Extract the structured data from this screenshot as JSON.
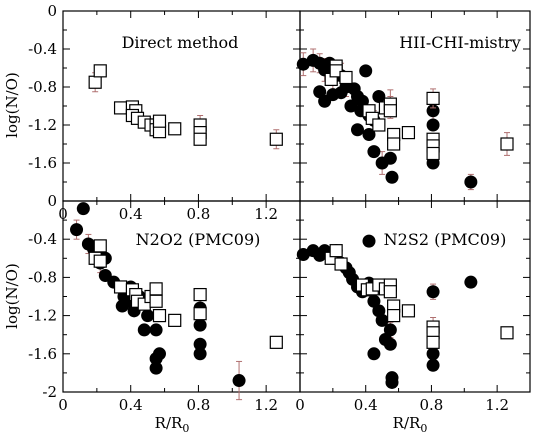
{
  "figure": {
    "ylabel": "log(N/O)",
    "xlabel_main": "R/R",
    "xlabel_sub": "0"
  },
  "chart_data": [
    {
      "type": "scatter",
      "title": "Direct method",
      "xlim": [
        0,
        1.4
      ],
      "ylim": [
        -2,
        0
      ],
      "xticks": [
        0,
        0.4,
        0.8,
        1.2
      ],
      "xtick_labels": [
        "0",
        "0.4",
        "0.8",
        "1.2"
      ],
      "yticks": [
        0,
        -0.4,
        -0.8,
        -1.2,
        -1.6
      ],
      "ytick_labels": [
        "0",
        "-0.4",
        "-0.8",
        "-1.2",
        "-1.6"
      ],
      "series": [
        {
          "marker": "open-square",
          "points": [
            [
              0.19,
              -0.75
            ],
            [
              0.22,
              -0.63
            ],
            [
              0.34,
              -1.02
            ],
            [
              0.41,
              -1.01
            ],
            [
              0.43,
              -1.05
            ],
            [
              0.41,
              -1.1
            ],
            [
              0.44,
              -1.13
            ],
            [
              0.48,
              -1.17
            ],
            [
              0.52,
              -1.2
            ],
            [
              0.55,
              -1.2
            ],
            [
              0.55,
              -1.25
            ],
            [
              0.57,
              -1.27
            ],
            [
              0.57,
              -1.16
            ],
            [
              0.66,
              -1.24
            ],
            [
              0.81,
              -1.2
            ],
            [
              0.81,
              -1.28
            ],
            [
              0.81,
              -1.35
            ],
            [
              1.26,
              -1.35
            ]
          ],
          "error_y": [
            [
              0.19,
              0.1
            ],
            [
              0.55,
              0.06
            ],
            [
              0.57,
              0.05
            ],
            [
              0.81,
              0.1
            ],
            [
              1.26,
              0.1
            ]
          ]
        }
      ]
    },
    {
      "type": "scatter",
      "title": "HII-CHI-mistry",
      "xlim": [
        0,
        1.4
      ],
      "ylim": [
        -2,
        0
      ],
      "series": [
        {
          "marker": "filled-circle",
          "points": [
            [
              0.02,
              -0.56
            ],
            [
              0.08,
              -0.52
            ],
            [
              0.12,
              -0.55
            ],
            [
              0.15,
              -0.62
            ],
            [
              0.18,
              -0.55
            ],
            [
              0.2,
              -0.7
            ],
            [
              0.25,
              -0.68
            ],
            [
              0.12,
              -0.85
            ],
            [
              0.15,
              -0.95
            ],
            [
              0.2,
              -0.88
            ],
            [
              0.25,
              -0.86
            ],
            [
              0.28,
              -0.8
            ],
            [
              0.33,
              -0.82
            ],
            [
              0.35,
              -0.9
            ],
            [
              0.37,
              -1.05
            ],
            [
              0.38,
              -0.95
            ],
            [
              0.42,
              -1.1
            ],
            [
              0.45,
              -1.15
            ],
            [
              0.48,
              -0.9
            ],
            [
              0.55,
              -0.98
            ],
            [
              0.31,
              -1.0
            ],
            [
              0.35,
              -1.25
            ],
            [
              0.42,
              -1.3
            ],
            [
              0.45,
              -1.48
            ],
            [
              0.5,
              -1.6
            ],
            [
              0.55,
              -1.55
            ],
            [
              0.56,
              -1.75
            ],
            [
              0.81,
              -1.05
            ],
            [
              0.81,
              -1.2
            ],
            [
              0.81,
              -1.6
            ],
            [
              1.04,
              -1.8
            ],
            [
              0.4,
              -0.63
            ],
            [
              0.22,
              -0.6
            ]
          ],
          "error_y": [
            [
              0.02,
              0.12
            ],
            [
              0.08,
              0.12
            ],
            [
              0.12,
              0.1
            ],
            [
              0.15,
              0.12
            ],
            [
              0.2,
              0.15
            ],
            [
              0.25,
              0.13
            ],
            [
              0.28,
              0.1
            ],
            [
              0.35,
              0.1
            ],
            [
              0.45,
              0.1
            ],
            [
              0.5,
              0.12
            ],
            [
              0.55,
              0.15
            ],
            [
              0.81,
              0.1
            ],
            [
              1.04,
              0.08
            ]
          ]
        },
        {
          "marker": "open-square",
          "points": [
            [
              0.19,
              -0.72
            ],
            [
              0.22,
              -0.58
            ],
            [
              0.22,
              -0.63
            ],
            [
              0.28,
              -0.7
            ],
            [
              0.42,
              -1.05
            ],
            [
              0.44,
              -1.13
            ],
            [
              0.48,
              -1.2
            ],
            [
              0.52,
              -1.02
            ],
            [
              0.55,
              -0.98
            ],
            [
              0.55,
              -1.05
            ],
            [
              0.57,
              -1.3
            ],
            [
              0.57,
              -1.4
            ],
            [
              0.66,
              -1.28
            ],
            [
              0.81,
              -0.92
            ],
            [
              0.81,
              -1.35
            ],
            [
              0.81,
              -1.42
            ],
            [
              0.81,
              -1.5
            ],
            [
              1.26,
              -1.4
            ]
          ],
          "error_y": [
            [
              0.55,
              0.08
            ],
            [
              0.81,
              0.1
            ],
            [
              1.26,
              0.12
            ]
          ]
        }
      ]
    },
    {
      "type": "scatter",
      "title": "N2O2 (PMC09)",
      "xlim": [
        0,
        1.4
      ],
      "ylim": [
        -2,
        0
      ],
      "xticks": [
        0,
        0.4,
        0.8,
        1.2
      ],
      "xtick_labels": [
        "0",
        "0.4",
        "0.8",
        "1.2"
      ],
      "yticks": [
        0,
        -0.4,
        -0.8,
        -1.2,
        -1.6,
        -2
      ],
      "ytick_labels": [
        "0",
        "-0.4",
        "-0.8",
        "-1.2",
        "-1.6",
        "-2"
      ],
      "series": [
        {
          "marker": "filled-circle",
          "points": [
            [
              0.08,
              -0.3
            ],
            [
              0.12,
              -0.08
            ],
            [
              0.15,
              -0.45
            ],
            [
              0.18,
              -0.5
            ],
            [
              0.2,
              -0.55
            ],
            [
              0.22,
              -0.65
            ],
            [
              0.25,
              -0.6
            ],
            [
              0.3,
              -0.85
            ],
            [
              0.34,
              -0.9
            ],
            [
              0.36,
              -1.0
            ],
            [
              0.35,
              -1.1
            ],
            [
              0.4,
              -1.05
            ],
            [
              0.42,
              -1.15
            ],
            [
              0.45,
              -1.0
            ],
            [
              0.5,
              -1.2
            ],
            [
              0.48,
              -1.35
            ],
            [
              0.55,
              -1.35
            ],
            [
              0.57,
              -1.6
            ],
            [
              0.55,
              -1.75
            ],
            [
              0.55,
              -1.65
            ],
            [
              0.81,
              -1.12
            ],
            [
              0.81,
              -1.3
            ],
            [
              0.81,
              -1.5
            ],
            [
              0.81,
              -1.6
            ],
            [
              1.04,
              -1.88
            ],
            [
              0.25,
              -0.78
            ],
            [
              0.4,
              -0.9
            ]
          ],
          "error_y": [
            [
              0.08,
              0.1
            ],
            [
              0.15,
              0.1
            ],
            [
              0.22,
              0.1
            ],
            [
              0.81,
              0.08
            ],
            [
              1.04,
              0.2
            ]
          ]
        },
        {
          "marker": "open-square",
          "points": [
            [
              0.19,
              -0.6
            ],
            [
              0.22,
              -0.47
            ],
            [
              0.22,
              -0.63
            ],
            [
              0.34,
              -0.9
            ],
            [
              0.41,
              -0.93
            ],
            [
              0.43,
              -0.98
            ],
            [
              0.44,
              -1.05
            ],
            [
              0.48,
              -1.08
            ],
            [
              0.52,
              -1.0
            ],
            [
              0.55,
              -0.92
            ],
            [
              0.55,
              -1.05
            ],
            [
              0.57,
              -1.2
            ],
            [
              0.66,
              -1.25
            ],
            [
              0.81,
              -0.98
            ],
            [
              0.81,
              -1.18
            ],
            [
              1.26,
              -1.48
            ]
          ],
          "error_y": [
            [
              0.55,
              0.06
            ]
          ]
        }
      ]
    },
    {
      "type": "scatter",
      "title": "N2S2 (PMC09)",
      "xlim": [
        0,
        1.4
      ],
      "ylim": [
        -2,
        0
      ],
      "xticks": [
        0,
        0.4,
        0.8,
        1.2
      ],
      "xtick_labels": [
        "0",
        "0.4",
        "0.8",
        "1.2"
      ],
      "series": [
        {
          "marker": "filled-circle",
          "points": [
            [
              0.02,
              -0.56
            ],
            [
              0.08,
              -0.52
            ],
            [
              0.12,
              -0.57
            ],
            [
              0.15,
              -0.52
            ],
            [
              0.18,
              -0.55
            ],
            [
              0.2,
              -0.6
            ],
            [
              0.25,
              -0.65
            ],
            [
              0.28,
              -0.7
            ],
            [
              0.3,
              -0.75
            ],
            [
              0.32,
              -0.82
            ],
            [
              0.35,
              -0.9
            ],
            [
              0.38,
              -0.95
            ],
            [
              0.42,
              -0.86
            ],
            [
              0.42,
              -0.42
            ],
            [
              0.45,
              -1.05
            ],
            [
              0.48,
              -1.15
            ],
            [
              0.5,
              -1.25
            ],
            [
              0.55,
              -1.35
            ],
            [
              0.52,
              -1.45
            ],
            [
              0.55,
              -1.5
            ],
            [
              0.45,
              -1.6
            ],
            [
              0.56,
              -1.85
            ],
            [
              0.56,
              -1.9
            ],
            [
              0.81,
              -0.95
            ],
            [
              0.81,
              -1.4
            ],
            [
              0.81,
              -1.6
            ],
            [
              0.81,
              -1.72
            ],
            [
              1.04,
              -0.85
            ],
            [
              0.22,
              -0.52
            ]
          ],
          "error_y": [
            [
              0.02,
              0.05
            ],
            [
              0.55,
              0.08
            ],
            [
              0.81,
              0.08
            ]
          ]
        },
        {
          "marker": "open-square",
          "points": [
            [
              0.19,
              -0.6
            ],
            [
              0.22,
              -0.52
            ],
            [
              0.25,
              -0.66
            ],
            [
              0.38,
              -0.88
            ],
            [
              0.41,
              -0.93
            ],
            [
              0.44,
              -0.92
            ],
            [
              0.48,
              -0.88
            ],
            [
              0.52,
              -0.92
            ],
            [
              0.55,
              -0.88
            ],
            [
              0.55,
              -0.95
            ],
            [
              0.57,
              -1.1
            ],
            [
              0.57,
              -1.2
            ],
            [
              0.66,
              -1.15
            ],
            [
              0.81,
              -1.32
            ],
            [
              0.81,
              -1.38
            ],
            [
              0.81,
              -1.48
            ],
            [
              1.26,
              -1.38
            ]
          ],
          "error_y": [
            [
              0.55,
              0.06
            ],
            [
              0.81,
              0.1
            ]
          ]
        }
      ]
    }
  ]
}
